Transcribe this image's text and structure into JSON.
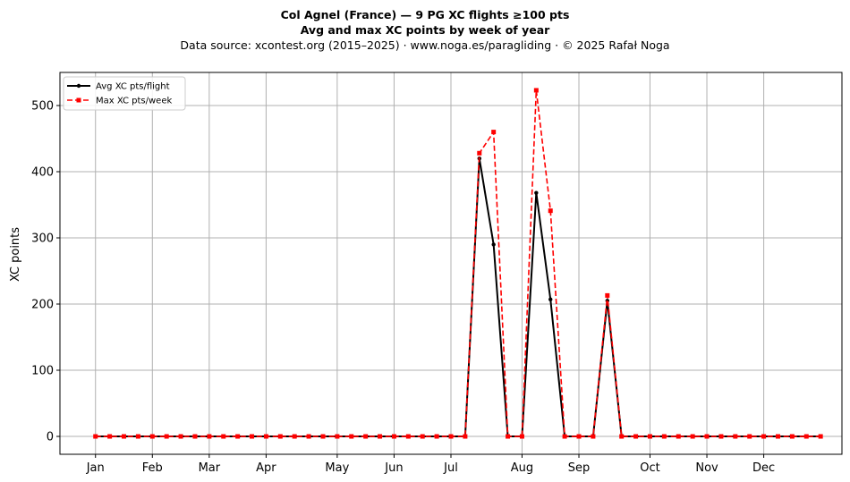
{
  "header": {
    "title": "Col Agnel (France)  —  9 PG XC flights ≥100 pts",
    "subtitle": "Avg and max XC points by week of year",
    "source": "Data source: xcontest.org (2015–2025)  ·  www.noga.es/paragliding  ·  © 2025 Rafał Noga"
  },
  "chart_data": {
    "type": "line",
    "title": "Col Agnel (France)  —  9 PG XC flights ≥100 pts",
    "subtitle": "Avg and max XC points by week of year",
    "xlabel": "",
    "ylabel": "XC points",
    "x_unit": "week of year",
    "xlim": [
      -2.5,
      52.5
    ],
    "ylim": [
      -27,
      550
    ],
    "yticks": [
      0,
      100,
      200,
      300,
      400,
      500
    ],
    "month_ticks": [
      {
        "label": "Jan",
        "week": 0
      },
      {
        "label": "Feb",
        "week": 4
      },
      {
        "label": "Mar",
        "week": 8
      },
      {
        "label": "Apr",
        "week": 12
      },
      {
        "label": "May",
        "week": 17
      },
      {
        "label": "Jun",
        "week": 21
      },
      {
        "label": "Jul",
        "week": 25
      },
      {
        "label": "Aug",
        "week": 30
      },
      {
        "label": "Sep",
        "week": 34
      },
      {
        "label": "Oct",
        "week": 39
      },
      {
        "label": "Nov",
        "week": 43
      },
      {
        "label": "Dec",
        "week": 47
      }
    ],
    "grid": true,
    "legend_position": "top-left",
    "weeks": [
      0,
      1,
      2,
      3,
      4,
      5,
      6,
      7,
      8,
      9,
      10,
      11,
      12,
      13,
      14,
      15,
      16,
      17,
      18,
      19,
      20,
      21,
      22,
      23,
      24,
      25,
      26,
      27,
      28,
      29,
      30,
      31,
      32,
      33,
      34,
      35,
      36,
      37,
      38,
      39,
      40,
      41,
      42,
      43,
      44,
      45,
      46,
      47,
      48,
      49,
      50,
      51
    ],
    "series": [
      {
        "name": "Avg XC pts/flight",
        "color": "#000000",
        "style": "solid-dot",
        "values": [
          0,
          0,
          0,
          0,
          0,
          0,
          0,
          0,
          0,
          0,
          0,
          0,
          0,
          0,
          0,
          0,
          0,
          0,
          0,
          0,
          0,
          0,
          0,
          0,
          0,
          0,
          0,
          420,
          290,
          0,
          0,
          368,
          207,
          0,
          0,
          0,
          205,
          0,
          0,
          0,
          0,
          0,
          0,
          0,
          0,
          0,
          0,
          0,
          0,
          0,
          0,
          0
        ]
      },
      {
        "name": "Max XC pts/week",
        "color": "#ff0000",
        "style": "dashed-square",
        "values": [
          0,
          0,
          0,
          0,
          0,
          0,
          0,
          0,
          0,
          0,
          0,
          0,
          0,
          0,
          0,
          0,
          0,
          0,
          0,
          0,
          0,
          0,
          0,
          0,
          0,
          0,
          0,
          428,
          460,
          0,
          0,
          523,
          341,
          0,
          0,
          0,
          213,
          0,
          0,
          0,
          0,
          0,
          0,
          0,
          0,
          0,
          0,
          0,
          0,
          0,
          0,
          0
        ]
      }
    ]
  }
}
